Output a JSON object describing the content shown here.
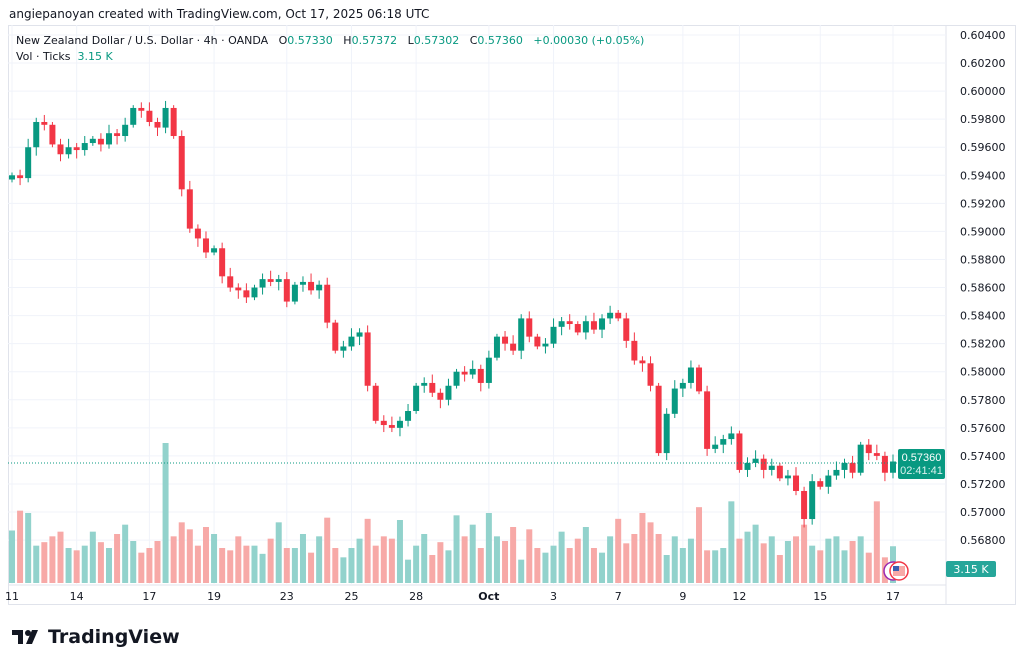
{
  "credit": "angiepanoyan created with TradingView.com, Oct 17, 2025 06:18 UTC",
  "legend": {
    "symbol": "New Zealand Dollar / U.S. Dollar · 4h · OANDA",
    "o_label": "O",
    "o": "0.57330",
    "h_label": "H",
    "h": "0.57372",
    "l_label": "L",
    "l": "0.57302",
    "c_label": "C",
    "c": "0.57360",
    "change": "+0.00030 (+0.05%)",
    "vol_label": "Vol · Ticks",
    "vol": "3.15 K"
  },
  "current_price": "0.57360",
  "countdown": "02:41:41",
  "volume_badge": "3.15 K",
  "logo_text": "TradingView",
  "colors": {
    "up": "#089981",
    "down": "#f23645",
    "vol_up": "#92d2cc",
    "vol_down": "#f7a9a7",
    "badge": "#089981"
  },
  "chart_data": {
    "type": "candlestick",
    "title": "New Zealand Dollar / U.S. Dollar · 4h · OANDA",
    "ylim": [
      0.5662,
      0.6055
    ],
    "y_ticks": [
      "0.60400",
      "0.60200",
      "0.60000",
      "0.59800",
      "0.59600",
      "0.59400",
      "0.59200",
      "0.59000",
      "0.58800",
      "0.58600",
      "0.58400",
      "0.58200",
      "0.58000",
      "0.57800",
      "0.57600",
      "0.57400",
      "0.57200",
      "0.57000",
      "0.56800"
    ],
    "x_ticks": [
      "11",
      "14",
      "17",
      "19",
      "23",
      "25",
      "28",
      "Oct",
      "3",
      "7",
      "9",
      "12",
      "15",
      "17"
    ],
    "x_tick_index": [
      0,
      8,
      17,
      25,
      34,
      42,
      50,
      59,
      67,
      75,
      83,
      90,
      100,
      109
    ],
    "close": [
      0.594,
      0.5938,
      0.596,
      0.5978,
      0.5976,
      0.5962,
      0.5955,
      0.596,
      0.5958,
      0.5963,
      0.5966,
      0.5962,
      0.597,
      0.5968,
      0.5976,
      0.5988,
      0.5986,
      0.5978,
      0.5974,
      0.5988,
      0.5968,
      0.593,
      0.5902,
      0.5895,
      0.5885,
      0.5888,
      0.5868,
      0.586,
      0.5858,
      0.5853,
      0.586,
      0.5866,
      0.5864,
      0.5866,
      0.585,
      0.5862,
      0.5864,
      0.5858,
      0.5862,
      0.5835,
      0.5815,
      0.5818,
      0.5825,
      0.5828,
      0.579,
      0.5765,
      0.5762,
      0.576,
      0.5765,
      0.5772,
      0.579,
      0.5792,
      0.5785,
      0.578,
      0.579,
      0.58,
      0.5798,
      0.5802,
      0.5792,
      0.581,
      0.5825,
      0.582,
      0.5815,
      0.5838,
      0.5825,
      0.5818,
      0.582,
      0.5832,
      0.5836,
      0.5834,
      0.5828,
      0.5836,
      0.583,
      0.5838,
      0.5842,
      0.5838,
      0.5822,
      0.5808,
      0.5806,
      0.579,
      0.5742,
      0.577,
      0.5788,
      0.5792,
      0.5803,
      0.5786,
      0.5745,
      0.5748,
      0.5752,
      0.5756,
      0.573,
      0.5735,
      0.5738,
      0.573,
      0.5733,
      0.5724,
      0.5726,
      0.5715,
      0.5695,
      0.5722,
      0.5718,
      0.5726,
      0.573,
      0.5735,
      0.5728,
      0.5748,
      0.5742,
      0.574,
      0.5728,
      0.5736
    ],
    "volume_k": [
      4.5,
      6.2,
      6.0,
      3.2,
      3.5,
      4.0,
      4.4,
      3.0,
      2.8,
      3.2,
      4.4,
      3.5,
      3.0,
      4.2,
      5.0,
      3.6,
      2.6,
      3.0,
      3.6,
      12.0,
      4.0,
      5.2,
      4.6,
      3.2,
      4.8,
      4.2,
      3.0,
      2.8,
      4.0,
      3.2,
      3.2,
      2.5,
      3.8,
      5.2,
      3.0,
      3.0,
      4.2,
      2.6,
      4.0,
      5.6,
      3.0,
      2.2,
      3.0,
      3.8,
      5.5,
      3.2,
      4.0,
      3.8,
      5.4,
      2.0,
      3.2,
      4.2,
      2.4,
      3.5,
      2.8,
      5.8,
      4.0,
      5.0,
      3.0,
      6.0,
      4.0,
      3.6,
      4.8,
      2.0,
      4.6,
      3.0,
      2.6,
      3.2,
      4.4,
      3.0,
      3.8,
      4.8,
      3.0,
      2.6,
      4.0,
      5.5,
      3.4,
      4.2,
      6.0,
      5.2,
      4.2,
      2.4,
      4.0,
      3.0,
      3.8,
      6.5,
      2.8,
      2.8,
      3.0,
      7.0,
      3.8,
      4.4,
      5.0,
      3.4,
      4.0,
      2.4,
      3.6,
      4.0,
      5.0,
      3.2,
      2.8,
      3.8,
      4.0,
      2.8,
      3.6,
      4.0,
      2.6,
      7.0,
      2.2,
      3.15
    ]
  }
}
